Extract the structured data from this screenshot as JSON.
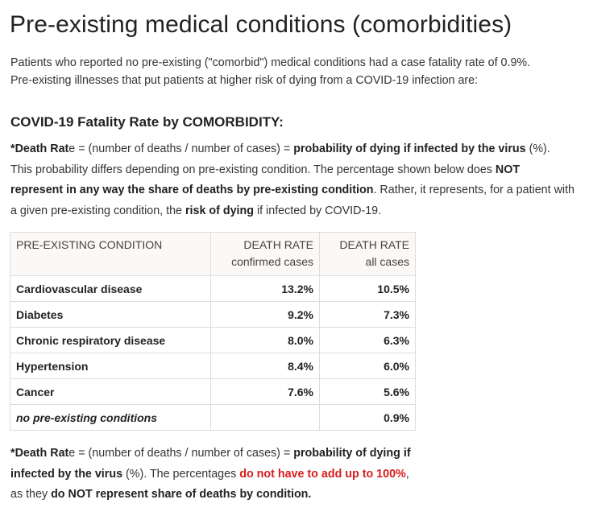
{
  "page_title": "Pre-existing medical conditions (comorbidities)",
  "intro": {
    "line1": "Patients who reported no pre-existing (\"comorbid\") medical conditions had a case fatality rate of 0.9%.",
    "line2": "Pre-existing illnesses that put patients at higher risk of dying from a COVID-19 infection are:"
  },
  "section_heading": "COVID-19 Fatality Rate by COMORBIDITY:",
  "definition": {
    "star_bold": "*Death Rat",
    "star_rest": "e = (number of deaths / number of cases) = ",
    "prob_bold": "probability of dying if infected by the virus",
    "pct": " (%).",
    "sentence2": " This probability differs depending on pre-existing condition. The percentage shown below does ",
    "not_rep_bold": "NOT represent in any way the share of deaths by pre-existing condition",
    "sentence3": ". Rather, it represents, for a patient with a given pre-existing condition, the ",
    "risk_bold": "risk of dying",
    "sentence4": " if infected by COVID-19."
  },
  "table": {
    "headers": {
      "condition": "PRE-EXISTING CONDITION",
      "col2_top": "DEATH RATE",
      "col2_sub": "confirmed cases",
      "col3_top": "DEATH RATE",
      "col3_sub": "all cases"
    },
    "rows": [
      {
        "condition": "Cardiovascular disease",
        "confirmed": "13.2%",
        "all": "10.5%"
      },
      {
        "condition": "Diabetes",
        "confirmed": "9.2%",
        "all": "7.3%"
      },
      {
        "condition": "Chronic respiratory disease",
        "confirmed": "8.0%",
        "all": "6.3%"
      },
      {
        "condition": "Hypertension",
        "confirmed": "8.4%",
        "all": "6.0%"
      },
      {
        "condition": "Cancer",
        "confirmed": "7.6%",
        "all": "5.6%"
      },
      {
        "condition": "no pre-existing conditions",
        "confirmed": "",
        "all": "0.9%"
      }
    ]
  },
  "footnote": {
    "star_bold": "*Death Rat",
    "star_rest": "e = (number of deaths / number of cases) = ",
    "prob_bold": "probability of dying if infected by the virus",
    "pct": " (%). The percentages ",
    "red_bold": "do not have to add up to 100%",
    "mid": ", as they ",
    "not_rep_bold": "do NOT represent share of deaths by condition."
  },
  "colors": {
    "text": "#222222",
    "header_bg": "#fcf8f6",
    "border": "#dddddd",
    "emphasis_red": "#d91c1c"
  }
}
